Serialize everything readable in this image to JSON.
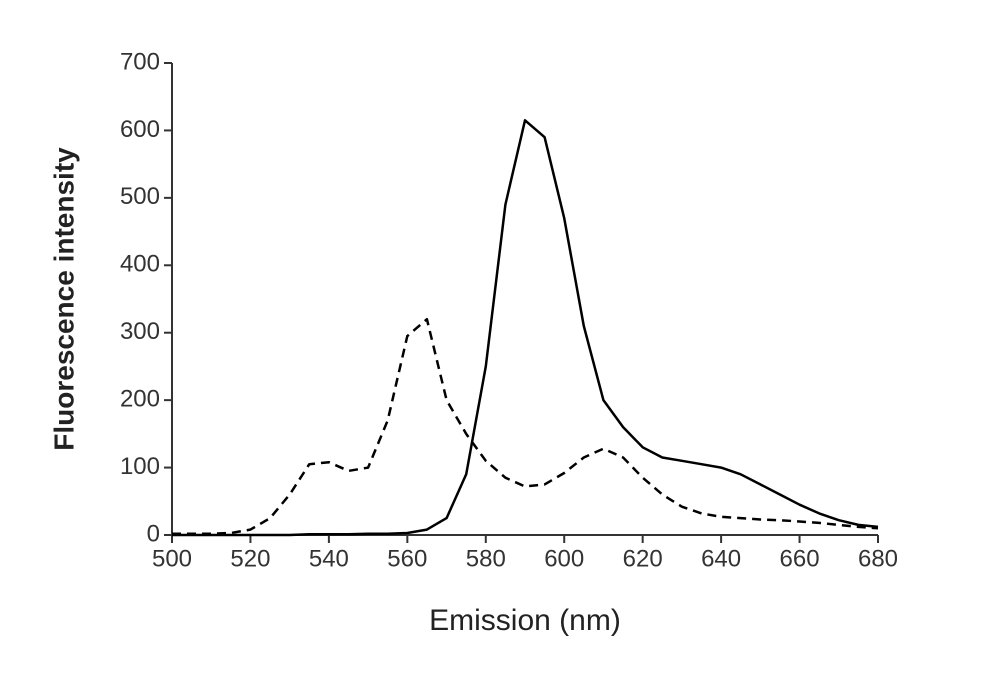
{
  "chart_data": {
    "type": "line",
    "xlabel": "Emission (nm)",
    "ylabel": "Fluorescence intensity",
    "x": [
      500,
      505,
      510,
      515,
      520,
      525,
      530,
      535,
      540,
      545,
      550,
      555,
      560,
      565,
      570,
      575,
      580,
      585,
      590,
      595,
      600,
      605,
      610,
      615,
      620,
      625,
      630,
      635,
      640,
      645,
      650,
      655,
      660,
      665,
      670,
      675,
      680
    ],
    "series": [
      {
        "color": "#000000",
        "style": "solid",
        "values": [
          0,
          0,
          0,
          0,
          0,
          0,
          0,
          1,
          1,
          1,
          2,
          2,
          3,
          8,
          25,
          90,
          250,
          490,
          615,
          590,
          470,
          310,
          200,
          160,
          130,
          115,
          110,
          105,
          100,
          90,
          75,
          60,
          45,
          32,
          22,
          15,
          12
        ]
      },
      {
        "color": "#000000",
        "style": "dashed",
        "values": [
          2,
          2,
          2,
          3,
          8,
          25,
          60,
          105,
          108,
          95,
          100,
          170,
          295,
          320,
          200,
          150,
          110,
          85,
          72,
          75,
          92,
          115,
          128,
          115,
          85,
          60,
          42,
          32,
          27,
          25,
          23,
          22,
          20,
          18,
          15,
          12,
          10
        ]
      }
    ],
    "xlim": [
      500,
      680
    ],
    "xticks": [
      500,
      520,
      540,
      560,
      580,
      600,
      620,
      640,
      660,
      680
    ],
    "ylim": [
      0,
      700
    ],
    "yticks": [
      0,
      100,
      200,
      300,
      400,
      500,
      600,
      700
    ],
    "grid": false
  }
}
